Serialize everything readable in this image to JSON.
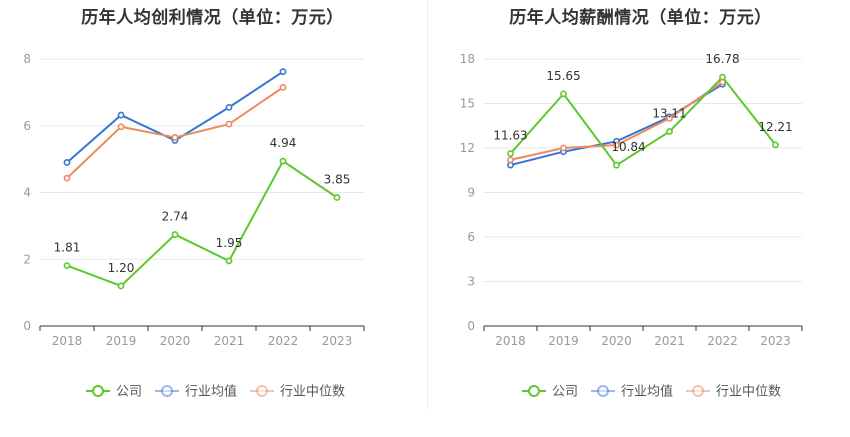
{
  "charts": [
    {
      "title": "历年人均创利情况（单位：万元）",
      "chart_data": {
        "type": "line",
        "title": "历年人均创利情况（单位：万元）",
        "categories": [
          "2018",
          "2019",
          "2020",
          "2021",
          "2022",
          "2023"
        ],
        "ylim": [
          0,
          8
        ],
        "yticks": [
          0,
          2,
          4,
          6,
          8
        ],
        "grid": true,
        "legend": "bottom-center",
        "series": [
          {
            "name": "公司",
            "color": "#5bc92c",
            "values": [
              1.81,
              1.2,
              2.74,
              1.95,
              4.94,
              3.85
            ],
            "labels": [
              "1.81",
              "1.20",
              "2.74",
              "1.95",
              "4.94",
              "3.85"
            ]
          },
          {
            "name": "行业均值",
            "color": "#3575d7",
            "values": [
              4.9,
              6.32,
              5.56,
              6.55,
              7.62,
              null
            ],
            "labels": []
          },
          {
            "name": "行业中位数",
            "color": "#ef8a5e",
            "values": [
              4.43,
              5.97,
              5.65,
              6.05,
              7.15,
              null
            ],
            "labels": []
          }
        ]
      }
    },
    {
      "title": "历年人均薪酬情况（单位：万元）",
      "chart_data": {
        "type": "line",
        "title": "历年人均薪酬情况（单位：万元）",
        "categories": [
          "2018",
          "2019",
          "2020",
          "2021",
          "2022",
          "2023"
        ],
        "ylim": [
          0,
          18
        ],
        "yticks": [
          0,
          3,
          6,
          9,
          12,
          15,
          18
        ],
        "grid": true,
        "legend": "bottom-center",
        "series": [
          {
            "name": "公司",
            "color": "#5bc92c",
            "values": [
              11.63,
              15.65,
              10.84,
              13.11,
              16.78,
              12.21
            ],
            "labels": [
              "11.63",
              "15.65",
              "10.84",
              "13.11",
              "16.78",
              "12.21"
            ]
          },
          {
            "name": "行业均值",
            "color": "#3575d7",
            "values": [
              10.85,
              11.75,
              12.45,
              14.1,
              16.3,
              null
            ],
            "labels": []
          },
          {
            "name": "行业中位数",
            "color": "#ef8a5e",
            "values": [
              11.2,
              12.0,
              12.2,
              14.0,
              16.45,
              null
            ],
            "labels": []
          }
        ]
      }
    }
  ]
}
